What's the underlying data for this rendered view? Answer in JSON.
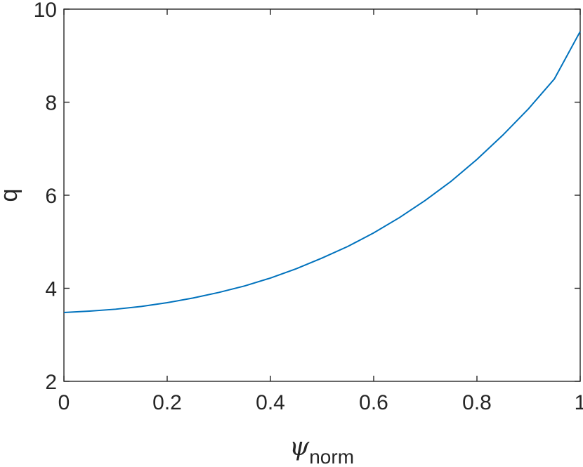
{
  "chart_data": {
    "type": "line",
    "title": "",
    "xlabel": {
      "symbol": "ψ",
      "subscript": "norm"
    },
    "ylabel": "q",
    "xlim": [
      0,
      1
    ],
    "ylim": [
      2,
      10
    ],
    "xticks": [
      0,
      0.2,
      0.4,
      0.6,
      0.8,
      1
    ],
    "xtick_labels": [
      "0",
      "0.2",
      "0.4",
      "0.6",
      "0.8",
      "1"
    ],
    "yticks": [
      2,
      4,
      6,
      8,
      10
    ],
    "ytick_labels": [
      "2",
      "4",
      "6",
      "8",
      "10"
    ],
    "grid": false,
    "series": [
      {
        "color": "#0072bd",
        "x": [
          0,
          0.05,
          0.1,
          0.15,
          0.2,
          0.25,
          0.3,
          0.35,
          0.4,
          0.45,
          0.5,
          0.55,
          0.6,
          0.65,
          0.7,
          0.75,
          0.8,
          0.85,
          0.9,
          0.95,
          1
        ],
        "y": [
          3.48,
          3.51,
          3.55,
          3.61,
          3.69,
          3.79,
          3.91,
          4.05,
          4.22,
          4.42,
          4.65,
          4.9,
          5.19,
          5.52,
          5.89,
          6.3,
          6.77,
          7.29,
          7.86,
          8.5,
          9.52
        ]
      }
    ]
  }
}
